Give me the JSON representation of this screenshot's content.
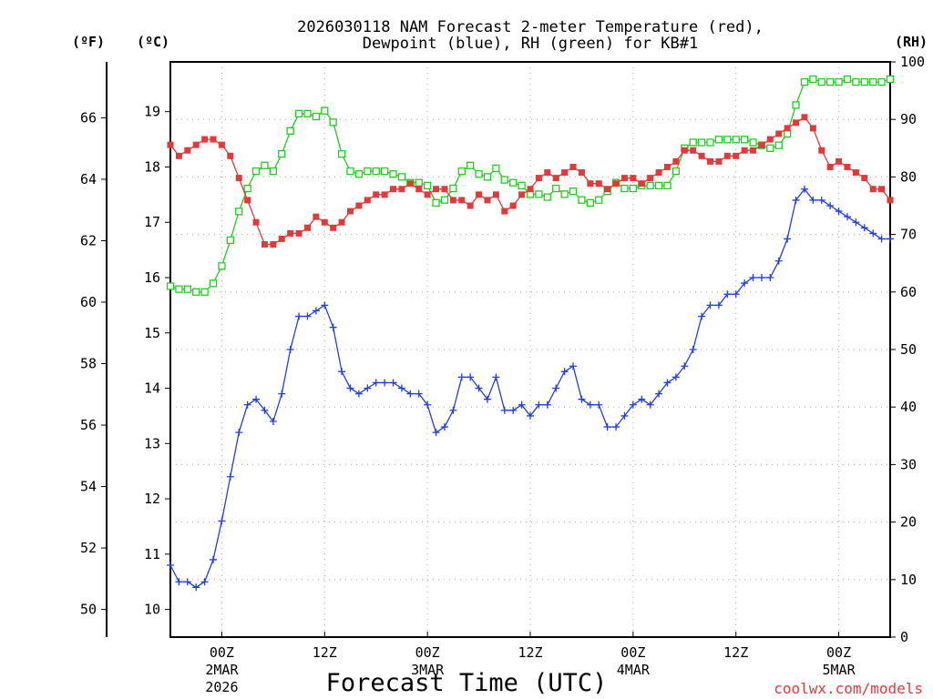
{
  "chart_data": {
    "type": "line",
    "title_line1": "2026030118 NAM Forecast 2-meter Temperature (red),",
    "title_line2": "Dewpoint (blue), RH (green) for KB#1",
    "xlabel": "Forecast Time (UTC)",
    "credit": "coolwx.com/models",
    "units": {
      "fahrenheit": "(ºF)",
      "celsius": "(ºC)",
      "rh": "(RH)"
    },
    "x_hours_range": [
      -6,
      78
    ],
    "x_ticks": [
      {
        "hour": 0,
        "line1": "00Z",
        "line2": "2MAR",
        "line3": "2026"
      },
      {
        "hour": 12,
        "line1": "12Z",
        "line2": "",
        "line3": ""
      },
      {
        "hour": 24,
        "line1": "00Z",
        "line2": "3MAR",
        "line3": ""
      },
      {
        "hour": 36,
        "line1": "12Z",
        "line2": "",
        "line3": ""
      },
      {
        "hour": 48,
        "line1": "00Z",
        "line2": "4MAR",
        "line3": ""
      },
      {
        "hour": 60,
        "line1": "12Z",
        "line2": "",
        "line3": ""
      },
      {
        "hour": 72,
        "line1": "00Z",
        "line2": "5MAR",
        "line3": ""
      }
    ],
    "celsius_axis": {
      "range": [
        9.5,
        19.9
      ],
      "ticks": [
        10,
        11,
        12,
        13,
        14,
        15,
        16,
        17,
        18,
        19
      ]
    },
    "fahrenheit_axis": {
      "ticks": [
        50,
        52,
        54,
        56,
        58,
        60,
        62,
        64,
        66
      ]
    },
    "rh_axis": {
      "range": [
        0,
        100
      ],
      "ticks": [
        0,
        10,
        20,
        30,
        40,
        50,
        60,
        70,
        80,
        90,
        100
      ]
    },
    "grid": true,
    "colors": {
      "temperature": "#e03a3a",
      "dewpoint": "#2340d8",
      "rh": "#22cc22"
    },
    "series": [
      {
        "key": "temperature",
        "unit": "C",
        "marker": "filled-square",
        "x": [
          -6,
          -5,
          -4,
          -3,
          -2,
          -1,
          0,
          1,
          2,
          3,
          4,
          5,
          6,
          7,
          8,
          9,
          10,
          11,
          12,
          13,
          14,
          15,
          16,
          17,
          18,
          19,
          20,
          21,
          22,
          23,
          24,
          25,
          26,
          27,
          28,
          29,
          30,
          31,
          32,
          33,
          34,
          35,
          36,
          37,
          38,
          39,
          40,
          41,
          42,
          43,
          44,
          45,
          46,
          47,
          48,
          49,
          50,
          51,
          52,
          53,
          54,
          55,
          56,
          57,
          58,
          59,
          60,
          61,
          62,
          63,
          64,
          65,
          66,
          67,
          68,
          69,
          70,
          71,
          72,
          73,
          74,
          75,
          76,
          77,
          78
        ],
        "values": [
          18.4,
          18.2,
          18.3,
          18.4,
          18.5,
          18.5,
          18.4,
          18.2,
          17.8,
          17.4,
          17.0,
          16.6,
          16.6,
          16.7,
          16.8,
          16.8,
          16.9,
          17.1,
          17.0,
          16.9,
          17.0,
          17.2,
          17.3,
          17.4,
          17.5,
          17.5,
          17.6,
          17.6,
          17.7,
          17.6,
          17.5,
          17.6,
          17.6,
          17.4,
          17.4,
          17.3,
          17.5,
          17.4,
          17.5,
          17.2,
          17.3,
          17.5,
          17.6,
          17.8,
          17.9,
          17.8,
          17.9,
          18.0,
          17.9,
          17.7,
          17.7,
          17.6,
          17.7,
          17.8,
          17.8,
          17.7,
          17.8,
          17.9,
          18.0,
          18.1,
          18.3,
          18.3,
          18.2,
          18.1,
          18.1,
          18.2,
          18.2,
          18.3,
          18.3,
          18.4,
          18.5,
          18.6,
          18.7,
          18.8,
          18.9,
          18.7,
          18.3,
          18.0,
          18.1,
          18.0,
          17.9,
          17.8,
          17.6,
          17.6,
          17.4
        ]
      },
      {
        "key": "dewpoint",
        "unit": "C",
        "marker": "plus",
        "x": [
          -6,
          -5,
          -4,
          -3,
          -2,
          -1,
          0,
          1,
          2,
          3,
          4,
          5,
          6,
          7,
          8,
          9,
          10,
          11,
          12,
          13,
          14,
          15,
          16,
          17,
          18,
          19,
          20,
          21,
          22,
          23,
          24,
          25,
          26,
          27,
          28,
          29,
          30,
          31,
          32,
          33,
          34,
          35,
          36,
          37,
          38,
          39,
          40,
          41,
          42,
          43,
          44,
          45,
          46,
          47,
          48,
          49,
          50,
          51,
          52,
          53,
          54,
          55,
          56,
          57,
          58,
          59,
          60,
          61,
          62,
          63,
          64,
          65,
          66,
          67,
          68,
          69,
          70,
          71,
          72,
          73,
          74,
          75,
          76,
          77,
          78
        ],
        "values": [
          10.8,
          10.5,
          10.5,
          10.4,
          10.5,
          10.9,
          11.6,
          12.4,
          13.2,
          13.7,
          13.8,
          13.6,
          13.4,
          13.9,
          14.7,
          15.3,
          15.3,
          15.4,
          15.5,
          15.1,
          14.3,
          14.0,
          13.9,
          14.0,
          14.1,
          14.1,
          14.1,
          14.0,
          13.9,
          13.9,
          13.7,
          13.2,
          13.3,
          13.6,
          14.2,
          14.2,
          14.0,
          13.8,
          14.2,
          13.6,
          13.6,
          13.7,
          13.5,
          13.7,
          13.7,
          14.0,
          14.3,
          14.4,
          13.8,
          13.7,
          13.7,
          13.3,
          13.3,
          13.5,
          13.7,
          13.8,
          13.7,
          13.9,
          14.1,
          14.2,
          14.4,
          14.7,
          15.3,
          15.5,
          15.5,
          15.7,
          15.7,
          15.9,
          16.0,
          16.0,
          16.0,
          16.3,
          16.7,
          17.4,
          17.6,
          17.4,
          17.4,
          17.3,
          17.2,
          17.1,
          17.0,
          16.9,
          16.8,
          16.7,
          16.7
        ]
      },
      {
        "key": "rh",
        "unit": "%",
        "marker": "open-square",
        "x": [
          -6,
          -5,
          -4,
          -3,
          -2,
          -1,
          0,
          1,
          2,
          3,
          4,
          5,
          6,
          7,
          8,
          9,
          10,
          11,
          12,
          13,
          14,
          15,
          16,
          17,
          18,
          19,
          20,
          21,
          22,
          23,
          24,
          25,
          26,
          27,
          28,
          29,
          30,
          31,
          32,
          33,
          34,
          35,
          36,
          37,
          38,
          39,
          40,
          41,
          42,
          43,
          44,
          45,
          46,
          47,
          48,
          49,
          50,
          51,
          52,
          53,
          54,
          55,
          56,
          57,
          58,
          59,
          60,
          61,
          62,
          63,
          64,
          65,
          66,
          67,
          68,
          69,
          70,
          71,
          72,
          73,
          74,
          75,
          76,
          77,
          78
        ],
        "values": [
          61,
          60.5,
          60.5,
          60,
          60,
          61.5,
          64.5,
          69,
          74,
          78,
          81,
          82,
          81,
          84,
          88,
          91,
          91,
          90.5,
          91.5,
          89.5,
          84,
          81,
          80.5,
          81,
          81,
          81,
          80.5,
          80,
          79,
          79,
          78.5,
          75.5,
          76,
          78,
          81,
          82,
          80.5,
          80,
          81.5,
          79.5,
          79,
          78.5,
          77,
          77,
          76.5,
          78,
          77,
          77.5,
          76,
          75.5,
          76,
          77.5,
          79,
          78,
          78,
          78.5,
          78.5,
          78.5,
          78.5,
          81,
          85,
          86,
          86,
          86,
          86.5,
          86.5,
          86.5,
          86.5,
          86,
          85.5,
          85,
          85.5,
          87.5,
          92.5,
          96.5,
          97,
          96.5,
          96.5,
          96.5,
          97,
          96.5,
          96.5,
          96.5,
          96.5,
          97
        ]
      }
    ]
  }
}
